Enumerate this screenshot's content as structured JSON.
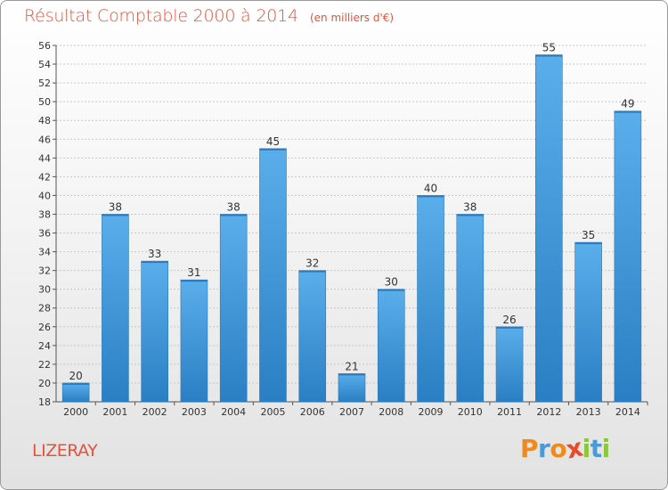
{
  "header": {
    "title": "Résultat Comptable 2000 à 2014",
    "subtitle": "(en milliers d'€)"
  },
  "footer": {
    "commune": "LIZERAY",
    "logo": [
      "P",
      "r",
      "o",
      "x",
      "i",
      "t",
      "i"
    ]
  },
  "colors": {
    "title": "#e5533d",
    "bar_top": "#5aaeea",
    "bar_bottom": "#2a7fc4",
    "grid": "#c8c8c8",
    "logo_letters": [
      "#f08a1c",
      "#4a9ad8",
      "#f08a1c",
      "#e84a2a",
      "#8cc63e",
      "#4a9ad8",
      "#8cc63e"
    ]
  },
  "chart_data": {
    "type": "bar",
    "title": "Résultat Comptable 2000 à 2014",
    "subtitle": "(en milliers d'€)",
    "categories": [
      "2000",
      "2001",
      "2002",
      "2003",
      "2004",
      "2005",
      "2006",
      "2007",
      "2008",
      "2009",
      "2010",
      "2011",
      "2012",
      "2013",
      "2014"
    ],
    "values": [
      20,
      38,
      33,
      31,
      38,
      45,
      32,
      21,
      30,
      40,
      38,
      26,
      55,
      35,
      49
    ],
    "ylim": [
      18,
      56
    ],
    "yticks": [
      18,
      20,
      22,
      24,
      26,
      28,
      30,
      32,
      34,
      36,
      38,
      40,
      42,
      44,
      46,
      48,
      50,
      52,
      54,
      56
    ],
    "grid": true,
    "data_labels": true
  }
}
